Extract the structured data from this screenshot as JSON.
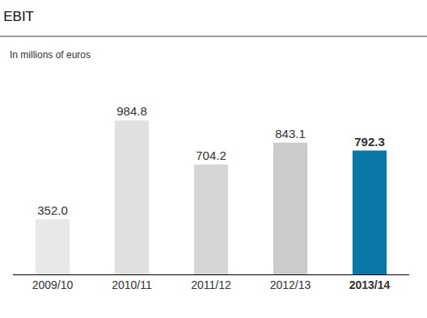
{
  "chart_data": {
    "type": "bar",
    "title": "EBIT",
    "subtitle": "In millions of euros",
    "categories": [
      "2009/10",
      "2010/11",
      "2011/12",
      "2012/13",
      "2013/14"
    ],
    "values": [
      352.0,
      984.8,
      704.2,
      843.1,
      792.3
    ],
    "value_labels": [
      "352.0",
      "984.8",
      "704.2",
      "843.1",
      "792.3"
    ],
    "colors": [
      "#e8e8e8",
      "#e0e0e0",
      "#d6d6d6",
      "#cbcbcb",
      "#0a78a6"
    ],
    "ylim": [
      0,
      1100
    ],
    "grid": false,
    "data_labels": true,
    "tick_labels": "x"
  }
}
